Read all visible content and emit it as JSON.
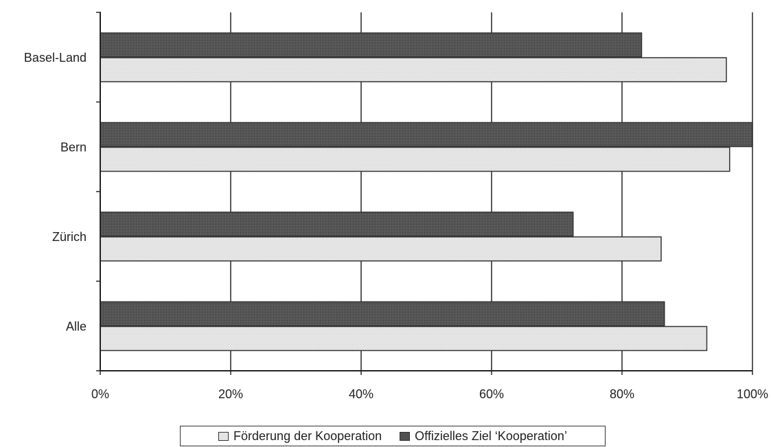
{
  "chart_data": {
    "type": "bar",
    "orientation": "horizontal",
    "categories": [
      "Basel-Land",
      "Bern",
      "Zürich",
      "Alle"
    ],
    "series": [
      {
        "name": "Offizielles Ziel ‘Kooperation’",
        "color": "#505050",
        "values": [
          83,
          100,
          72.5,
          86.5
        ]
      },
      {
        "name": "Förderung der Kooperation",
        "color": "#e4e4e4",
        "values": [
          96,
          96.5,
          86,
          93
        ]
      }
    ],
    "x_ticks": [
      "0%",
      "20%",
      "40%",
      "60%",
      "80%",
      "100%"
    ],
    "xlim": [
      0,
      100
    ],
    "grid": true,
    "legend_position": "bottom",
    "legend": [
      {
        "name": "Förderung der Kooperation",
        "color": "#e4e4e4"
      },
      {
        "name": "Offizielles Ziel ‘Kooperation’",
        "color": "#505050"
      }
    ]
  }
}
